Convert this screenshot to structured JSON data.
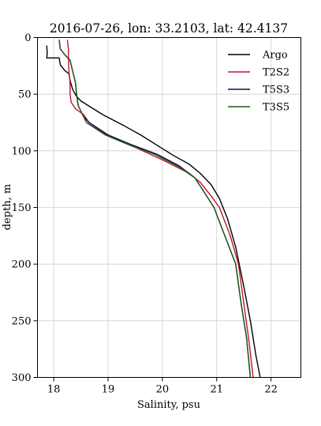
{
  "chart_data": {
    "type": "line",
    "title": "2016-07-26, lon: 33.2103,  lat: 42.4137",
    "xlabel": "Salinity, psu",
    "ylabel": "depth, m",
    "xlim": [
      17.7,
      22.55
    ],
    "ylim": [
      300,
      0
    ],
    "y_inverted": true,
    "grid": true,
    "legend_position": "top-right",
    "xticks": [
      18,
      19,
      20,
      21,
      22
    ],
    "yticks": [
      0,
      50,
      100,
      150,
      200,
      250,
      300
    ],
    "series": [
      {
        "name": "Argo",
        "color": "#000000",
        "points": [
          [
            17.87,
            7
          ],
          [
            17.88,
            14
          ],
          [
            17.87,
            18
          ],
          [
            18.1,
            18
          ],
          [
            18.12,
            24
          ],
          [
            18.2,
            29
          ],
          [
            18.28,
            32
          ],
          [
            18.3,
            38
          ],
          [
            18.35,
            46
          ],
          [
            18.42,
            52
          ],
          [
            18.5,
            56
          ],
          [
            18.7,
            62
          ],
          [
            18.9,
            68
          ],
          [
            19.1,
            73
          ],
          [
            19.3,
            78
          ],
          [
            19.6,
            86
          ],
          [
            19.9,
            95
          ],
          [
            20.2,
            104
          ],
          [
            20.5,
            112
          ],
          [
            20.7,
            120
          ],
          [
            20.9,
            130
          ],
          [
            21.05,
            142
          ],
          [
            21.2,
            160
          ],
          [
            21.35,
            185
          ],
          [
            21.5,
            220
          ],
          [
            21.62,
            250
          ],
          [
            21.72,
            280
          ],
          [
            21.8,
            300
          ]
        ]
      },
      {
        "name": "T2S2",
        "color": "#c0172d",
        "points": [
          [
            18.25,
            2
          ],
          [
            18.27,
            10
          ],
          [
            18.27,
            20
          ],
          [
            18.28,
            30
          ],
          [
            18.3,
            40
          ],
          [
            18.3,
            50
          ],
          [
            18.32,
            57
          ],
          [
            18.4,
            63
          ],
          [
            18.55,
            68
          ],
          [
            18.65,
            75
          ],
          [
            19.0,
            87
          ],
          [
            19.5,
            97
          ],
          [
            20.0,
            108
          ],
          [
            20.5,
            120
          ],
          [
            20.7,
            128
          ],
          [
            20.9,
            140
          ],
          [
            21.05,
            150
          ],
          [
            21.25,
            175
          ],
          [
            21.4,
            200
          ],
          [
            21.5,
            235
          ],
          [
            21.6,
            270
          ],
          [
            21.67,
            300
          ]
        ]
      },
      {
        "name": "T5S3",
        "color": "#0b0b4e",
        "points": [
          [
            18.1,
            2
          ],
          [
            18.12,
            10
          ],
          [
            18.2,
            15
          ],
          [
            18.3,
            20
          ],
          [
            18.35,
            30
          ],
          [
            18.4,
            40
          ],
          [
            18.42,
            50
          ],
          [
            18.45,
            60
          ],
          [
            18.55,
            70
          ],
          [
            18.65,
            75
          ],
          [
            19.0,
            86
          ],
          [
            19.4,
            94
          ],
          [
            19.9,
            103
          ],
          [
            20.3,
            113
          ],
          [
            20.6,
            124
          ],
          [
            20.75,
            135
          ],
          [
            20.95,
            150
          ],
          [
            21.15,
            175
          ],
          [
            21.35,
            200
          ],
          [
            21.45,
            235
          ],
          [
            21.55,
            265
          ],
          [
            21.62,
            300
          ]
        ]
      },
      {
        "name": "T3S5",
        "color": "#1f5c14",
        "points": [
          [
            18.1,
            2
          ],
          [
            18.12,
            10
          ],
          [
            18.2,
            15
          ],
          [
            18.3,
            20
          ],
          [
            18.35,
            30
          ],
          [
            18.4,
            40
          ],
          [
            18.42,
            50
          ],
          [
            18.45,
            60
          ],
          [
            18.55,
            70
          ],
          [
            18.6,
            75
          ],
          [
            18.95,
            86
          ],
          [
            19.35,
            94
          ],
          [
            19.85,
            103
          ],
          [
            20.3,
            114
          ],
          [
            20.6,
            124
          ],
          [
            20.75,
            135
          ],
          [
            20.95,
            150
          ],
          [
            21.15,
            175
          ],
          [
            21.35,
            200
          ],
          [
            21.45,
            235
          ],
          [
            21.55,
            265
          ],
          [
            21.62,
            300
          ]
        ]
      }
    ]
  }
}
